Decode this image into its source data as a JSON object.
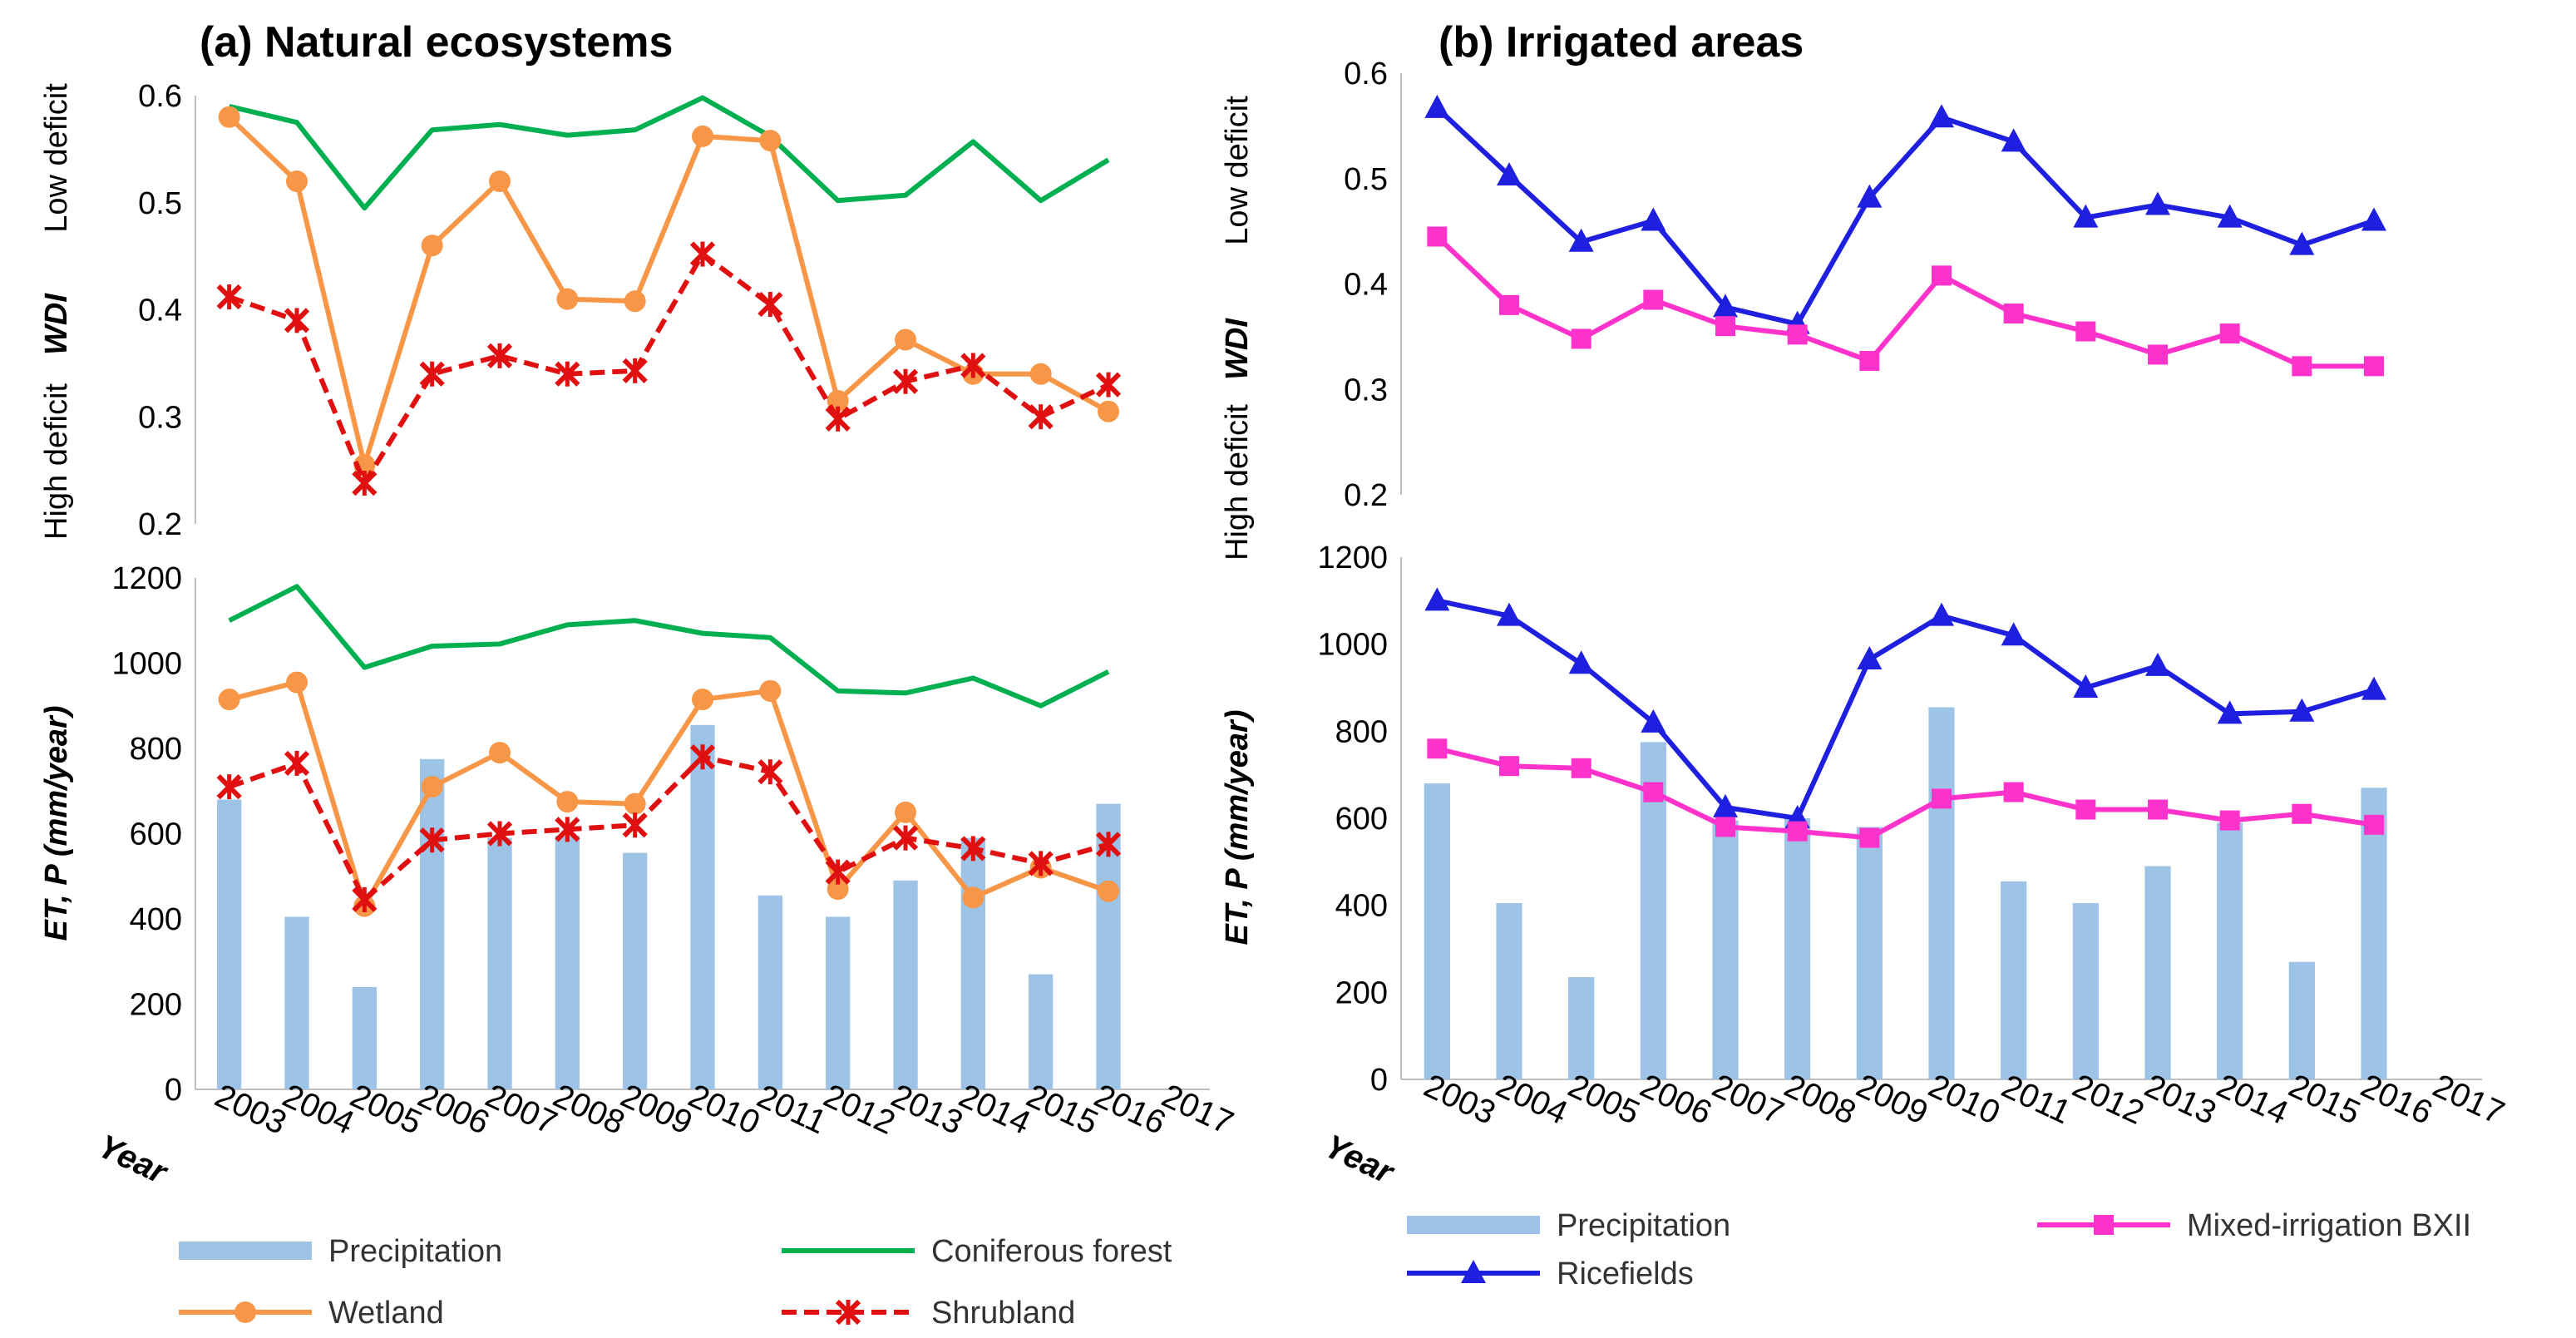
{
  "chart_data": [
    {
      "type": "line",
      "title": "(a) Natural ecosystems",
      "ylabel": "WDI",
      "ylabel_high": "High deficit",
      "ylabel_low": "Low deficit",
      "ylim": [
        0.2,
        0.6
      ],
      "yticks": [
        "0.2",
        "0.3",
        "0.4",
        "0.5",
        "0.6"
      ],
      "x": [
        2003,
        2004,
        2005,
        2006,
        2007,
        2008,
        2009,
        2010,
        2011,
        2012,
        2013,
        2014,
        2015,
        2016
      ],
      "series": [
        {
          "name": "Coniferous forest",
          "color": "#00b050",
          "values": [
            0.59,
            0.575,
            0.495,
            0.568,
            0.573,
            0.563,
            0.568,
            0.598,
            0.562,
            0.502,
            0.507,
            0.557,
            0.502,
            0.54
          ]
        },
        {
          "name": "Wetland",
          "color": "#f79646",
          "values": [
            0.58,
            0.52,
            0.255,
            0.46,
            0.52,
            0.41,
            0.408,
            0.562,
            0.558,
            0.315,
            0.372,
            0.34,
            0.34,
            0.305
          ]
        },
        {
          "name": "Shrubland",
          "color": "#e01010",
          "values": [
            0.412,
            0.39,
            0.238,
            0.34,
            0.357,
            0.34,
            0.343,
            0.452,
            0.405,
            0.298,
            0.333,
            0.348,
            0.3,
            0.33
          ]
        }
      ]
    },
    {
      "type": "bar+line",
      "ylabel": "ET, P (mm/year)",
      "ylim": [
        0,
        1200
      ],
      "yticks": [
        "0",
        "200",
        "400",
        "600",
        "800",
        "1000",
        "1200"
      ],
      "xlabel": "Year",
      "categories": [
        "2003",
        "2004",
        "2005",
        "2006",
        "2007",
        "2008",
        "2009",
        "2010",
        "2011",
        "2012",
        "2013",
        "2014",
        "2015",
        "2016",
        "2017"
      ],
      "x": [
        2003,
        2004,
        2005,
        2006,
        2007,
        2008,
        2009,
        2010,
        2011,
        2012,
        2013,
        2014,
        2015,
        2016
      ],
      "bars": {
        "name": "Precipitation",
        "color": "#9dc3e6",
        "values": [
          680,
          405,
          240,
          775,
          590,
          595,
          555,
          855,
          455,
          405,
          490,
          590,
          270,
          670
        ]
      },
      "series": [
        {
          "name": "Coniferous forest",
          "color": "#00b050",
          "values": [
            1100,
            1180,
            990,
            1040,
            1045,
            1090,
            1100,
            1070,
            1060,
            935,
            930,
            965,
            900,
            980
          ]
        },
        {
          "name": "Wetland",
          "color": "#f79646",
          "values": [
            915,
            955,
            430,
            710,
            790,
            675,
            670,
            915,
            935,
            470,
            650,
            450,
            520,
            465
          ]
        },
        {
          "name": "Shrubland",
          "color": "#e01010",
          "values": [
            710,
            765,
            445,
            585,
            600,
            610,
            620,
            780,
            745,
            510,
            590,
            565,
            530,
            575
          ]
        }
      ]
    },
    {
      "type": "line",
      "title": "(b) Irrigated areas",
      "ylabel": "WDI",
      "ylabel_high": "High deficit",
      "ylabel_low": "Low deficit",
      "ylim": [
        0.2,
        0.6
      ],
      "yticks": [
        "0.2",
        "0.3",
        "0.4",
        "0.5",
        "0.6"
      ],
      "x": [
        2003,
        2004,
        2005,
        2006,
        2007,
        2008,
        2009,
        2010,
        2011,
        2012,
        2013,
        2014,
        2015,
        2016
      ],
      "series": [
        {
          "name": "Ricefields",
          "color": "#1f1fe0",
          "values": [
            0.567,
            0.503,
            0.44,
            0.46,
            0.378,
            0.362,
            0.482,
            0.558,
            0.535,
            0.463,
            0.475,
            0.463,
            0.437,
            0.46
          ]
        },
        {
          "name": "Mixed-irrigation BXII",
          "color": "#ff33cc",
          "values": [
            0.445,
            0.38,
            0.348,
            0.385,
            0.36,
            0.352,
            0.327,
            0.408,
            0.372,
            0.355,
            0.333,
            0.353,
            0.322,
            0.322
          ]
        }
      ]
    },
    {
      "type": "bar+line",
      "ylabel": "ET, P (mm/year)",
      "ylim": [
        0,
        1200
      ],
      "yticks": [
        "0",
        "200",
        "400",
        "600",
        "800",
        "1000",
        "1200"
      ],
      "xlabel": "Year",
      "categories": [
        "2003",
        "2004",
        "2005",
        "2006",
        "2007",
        "2008",
        "2009",
        "2010",
        "2011",
        "2012",
        "2013",
        "2014",
        "2015",
        "2016",
        "2017"
      ],
      "x": [
        2003,
        2004,
        2005,
        2006,
        2007,
        2008,
        2009,
        2010,
        2011,
        2012,
        2013,
        2014,
        2015,
        2016
      ],
      "bars": {
        "name": "Precipitation",
        "color": "#9dc3e6",
        "values": [
          680,
          405,
          235,
          775,
          595,
          600,
          580,
          855,
          455,
          405,
          490,
          590,
          270,
          670
        ]
      },
      "series": [
        {
          "name": "Ricefields",
          "color": "#1f1fe0",
          "values": [
            1100,
            1065,
            955,
            820,
            625,
            600,
            965,
            1065,
            1020,
            900,
            950,
            840,
            845,
            895
          ]
        },
        {
          "name": "Mixed-irrigation BXII",
          "color": "#ff33cc",
          "values": [
            760,
            720,
            715,
            660,
            580,
            570,
            555,
            645,
            660,
            620,
            620,
            595,
            610,
            585
          ]
        }
      ]
    }
  ],
  "legends": {
    "a": [
      "Precipitation",
      "Coniferous forest",
      "Wetland",
      "Shrubland"
    ],
    "b": [
      "Precipitation",
      "Mixed-irrigation BXII",
      "Ricefields"
    ]
  }
}
